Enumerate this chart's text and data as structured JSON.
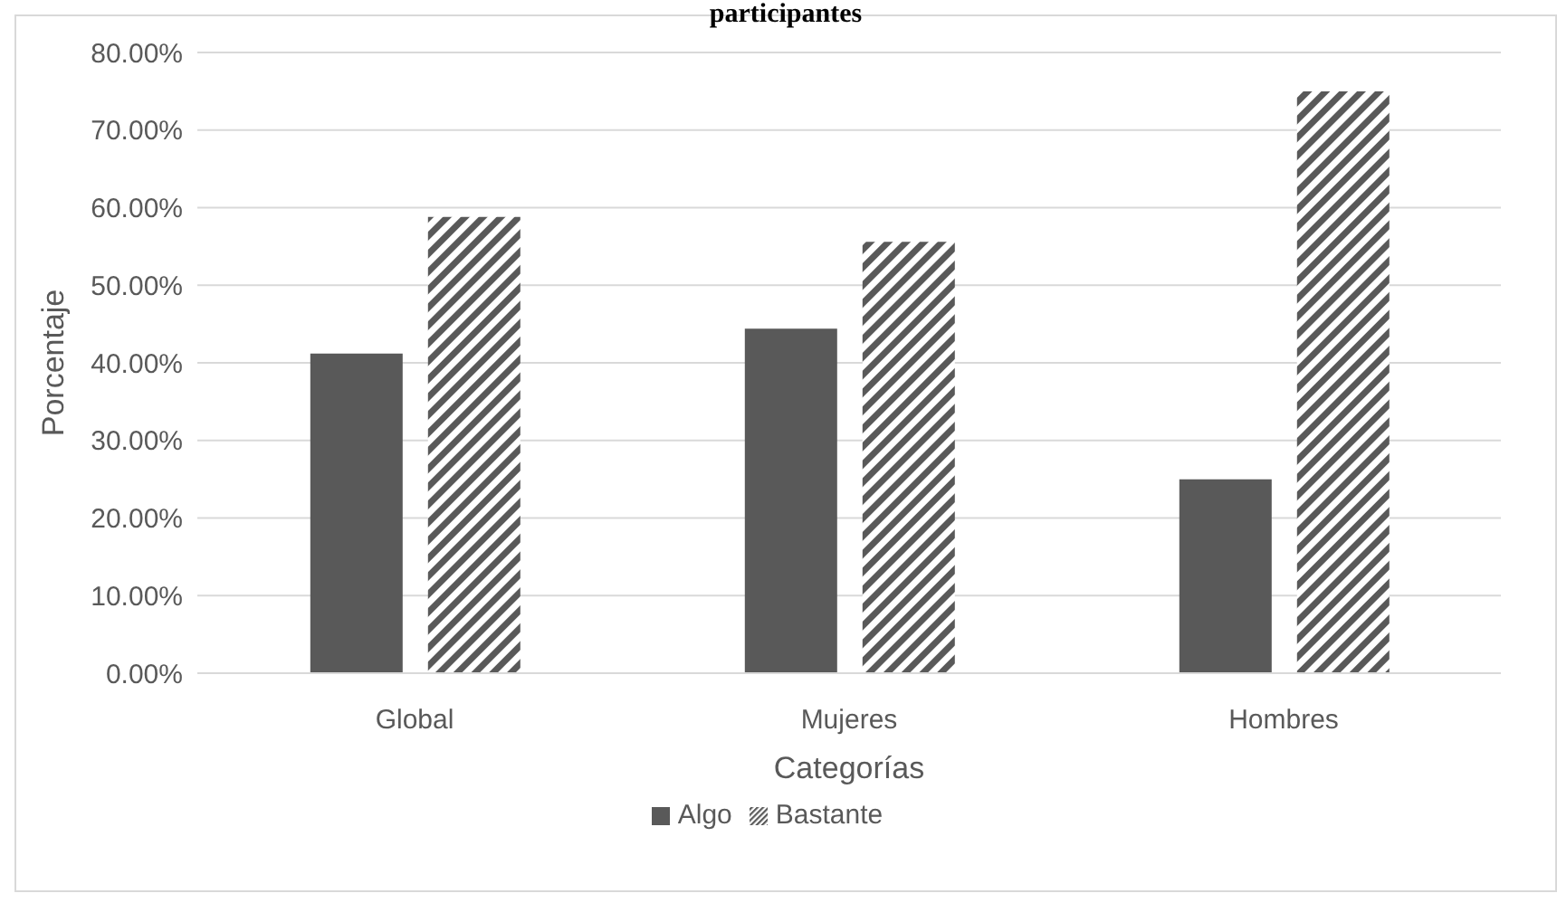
{
  "chart_data": {
    "type": "bar",
    "title": "participantes",
    "xlabel": "Categorías",
    "ylabel": "Porcentaje",
    "categories": [
      "Global",
      "Mujeres",
      "Hombres"
    ],
    "series": [
      {
        "name": "Algo",
        "color": "#595959",
        "values": [
          41.2,
          44.4,
          25.0
        ]
      },
      {
        "name": "Bastante",
        "color": "#595959",
        "values": [
          58.8,
          55.6,
          75.0
        ]
      }
    ],
    "ylim": [
      0,
      80
    ],
    "yticks": [
      {
        "value": 0,
        "label": "0.00%"
      },
      {
        "value": 10,
        "label": "10.00%"
      },
      {
        "value": 20,
        "label": "20.00%"
      },
      {
        "value": 30,
        "label": "30.00%"
      },
      {
        "value": 40,
        "label": "40.00%"
      },
      {
        "value": 50,
        "label": "50.00%"
      },
      {
        "value": 60,
        "label": "60.00%"
      },
      {
        "value": 70,
        "label": "70.00%"
      },
      {
        "value": 80,
        "label": "80.00%"
      }
    ],
    "grid": "y",
    "legend": "bottom"
  }
}
